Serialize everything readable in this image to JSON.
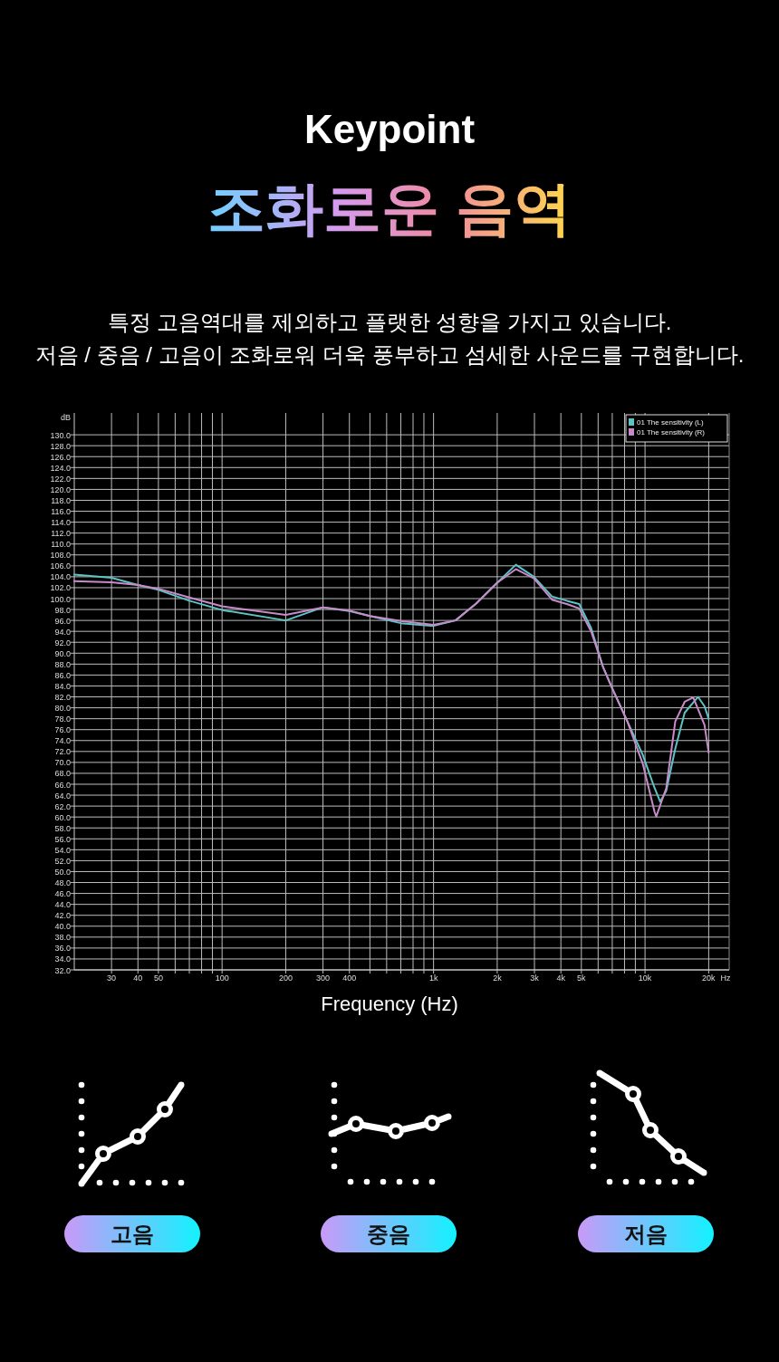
{
  "chart_data": {
    "type": "line",
    "title": "Keypoint",
    "subtitle": "조화로운 음역",
    "xlabel": "Frequency (Hz)",
    "ylabel": "dB",
    "annotations": [
      "특정 고음역대를 제외하고 플랫한 성향을 가지고 있습니다.",
      "저음 / 중음 / 고음이 조화로워 더욱 풍부하고 섬세한 사운드를 구현합니다.",
      "Hz",
      "고음",
      "중음",
      "저음"
    ],
    "log": "x",
    "grid": true,
    "legend": "top right",
    "xlim": [
      20,
      25000
    ],
    "ylim": [
      32,
      134
    ],
    "xticks": [
      30,
      40,
      50,
      {
        "value": 60,
        "label": null
      },
      {
        "value": 70,
        "label": null
      },
      {
        "value": 80,
        "label": null
      },
      {
        "value": 90,
        "label": null
      },
      100,
      200,
      300,
      400,
      {
        "value": 500,
        "label": null
      },
      {
        "value": 600,
        "label": null
      },
      {
        "value": 700,
        "label": null
      },
      {
        "value": 800,
        "label": null
      },
      {
        "value": 900,
        "label": null
      },
      {
        "value": 1000,
        "label": "1k"
      },
      {
        "value": 2000,
        "label": "2k"
      },
      {
        "value": 3000,
        "label": "3k"
      },
      {
        "value": 4000,
        "label": "4k"
      },
      {
        "value": 5000,
        "label": "5k"
      },
      {
        "value": 6000,
        "label": null
      },
      {
        "value": 7000,
        "label": null
      },
      {
        "value": 8000,
        "label": null
      },
      {
        "value": 9000,
        "label": null
      },
      {
        "value": 10000,
        "label": "10k"
      },
      {
        "value": 20000,
        "label": "20k"
      }
    ],
    "yticks": [
      {
        "value": 32,
        "label": "32.0"
      },
      {
        "value": 34,
        "label": "34.0"
      },
      {
        "value": 36,
        "label": "36.0"
      },
      {
        "value": 38,
        "label": "38.0"
      },
      {
        "value": 40,
        "label": "40.0"
      },
      {
        "value": 42,
        "label": "42.0"
      },
      {
        "value": 44,
        "label": "44.0"
      },
      {
        "value": 46,
        "label": "46.0"
      },
      {
        "value": 48,
        "label": "48.0"
      },
      {
        "value": 50,
        "label": "50.0"
      },
      {
        "value": 52,
        "label": "52.0"
      },
      {
        "value": 54,
        "label": "54.0"
      },
      {
        "value": 56,
        "label": "56.0"
      },
      {
        "value": 58,
        "label": "58.0"
      },
      {
        "value": 60,
        "label": "60.0"
      },
      {
        "value": 62,
        "label": "62.0"
      },
      {
        "value": 64,
        "label": "64.0"
      },
      {
        "value": 66,
        "label": "66.0"
      },
      {
        "value": 68,
        "label": "68.0"
      },
      {
        "value": 70,
        "label": "70.0"
      },
      {
        "value": 72,
        "label": "72.0"
      },
      {
        "value": 74,
        "label": "74.0"
      },
      {
        "value": 76,
        "label": "76.0"
      },
      {
        "value": 78,
        "label": "78.0"
      },
      {
        "value": 80,
        "label": "80.0"
      },
      {
        "value": 82,
        "label": "82.0"
      },
      {
        "value": 84,
        "label": "84.0"
      },
      {
        "value": 86,
        "label": "86.0"
      },
      {
        "value": 88,
        "label": "88.0"
      },
      {
        "value": 90,
        "label": "90.0"
      },
      {
        "value": 92,
        "label": "92.0"
      },
      {
        "value": 94,
        "label": "94.0"
      },
      {
        "value": 96,
        "label": "96.0"
      },
      {
        "value": 98,
        "label": "98.0"
      },
      {
        "value": 100,
        "label": "100.0"
      },
      {
        "value": 102,
        "label": "102.0"
      },
      {
        "value": 104,
        "label": "104.0"
      },
      {
        "value": 106,
        "label": "106.0"
      },
      {
        "value": 108,
        "label": "108.0"
      },
      {
        "value": 110,
        "label": "110.0"
      },
      {
        "value": 112,
        "label": "112.0"
      },
      {
        "value": 114,
        "label": "114.0"
      },
      {
        "value": 116,
        "label": "116.0"
      },
      {
        "value": 118,
        "label": "118.0"
      },
      {
        "value": 120,
        "label": "120.0"
      },
      {
        "value": 122,
        "label": "122.0"
      },
      {
        "value": 124,
        "label": "124.0"
      },
      {
        "value": 126,
        "label": "126.0"
      },
      {
        "value": 128,
        "label": "128.0"
      },
      {
        "value": 130,
        "label": "130.0"
      }
    ],
    "series": [
      {
        "name": "01 The sensitivity (L)",
        "color": "#5cc4c4",
        "x": [
          20,
          30,
          40,
          50,
          70,
          100,
          200,
          300,
          400,
          500,
          700,
          1000,
          1270,
          1590,
          2000,
          2450,
          2980,
          3630,
          4270,
          4880,
          5560,
          6340,
          6990,
          8250,
          9750,
          11100,
          11800,
          12600,
          13900,
          15400,
          17800,
          19100,
          20000
        ],
        "values": [
          104.4,
          103.8,
          102.5,
          101.6,
          99.6,
          97.9,
          96.0,
          98.4,
          97.7,
          96.8,
          95.5,
          95.0,
          96.0,
          99.1,
          102.9,
          106.2,
          104.0,
          100.4,
          99.6,
          99.0,
          94.6,
          87.4,
          83.6,
          77.5,
          71.4,
          65.3,
          62.8,
          64.8,
          72.5,
          79.1,
          82.0,
          80.3,
          78.0
        ]
      },
      {
        "name": "01 The sensitivity (R)",
        "color": "#c98ac9",
        "x": [
          20,
          30,
          40,
          50,
          70,
          100,
          200,
          300,
          400,
          500,
          700,
          1000,
          1270,
          1590,
          2000,
          2450,
          2980,
          3630,
          4270,
          4880,
          5560,
          6340,
          6990,
          8250,
          9750,
          11100,
          11300,
          12600,
          13900,
          15400,
          16900,
          19100,
          20000
        ],
        "values": [
          103.2,
          103.0,
          102.5,
          101.8,
          100.2,
          98.6,
          97.0,
          98.4,
          97.8,
          96.8,
          95.9,
          95.2,
          96.0,
          99.1,
          102.9,
          105.4,
          103.7,
          99.8,
          99.0,
          98.2,
          94.0,
          87.4,
          83.6,
          77.5,
          69.8,
          60.9,
          60.1,
          65.3,
          77.5,
          81.1,
          81.9,
          76.9,
          71.8
        ]
      }
    ]
  }
}
